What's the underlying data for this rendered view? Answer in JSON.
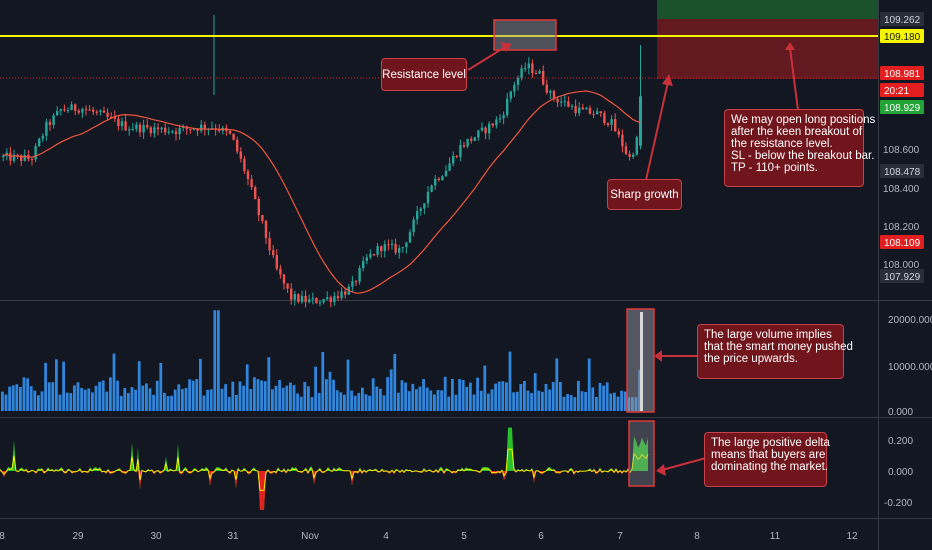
{
  "chart_data": [
    {
      "type": "candlestick",
      "title": "",
      "x_tick_labels": [
        "8",
        "29",
        "30",
        "31",
        "Nov",
        "4",
        "5",
        "6",
        "7",
        "8",
        "11",
        "12"
      ],
      "y_tick_labels": [
        "108.600",
        "108.400",
        "108.200",
        "108.000"
      ],
      "ylim": [
        107.87,
        109.33
      ],
      "resistance_level": 109.18,
      "price_tags": [
        {
          "label": "109.262",
          "color": "#2a2e39",
          "text_color": "#d1d4dc"
        },
        {
          "label": "109.180",
          "color": "#f5f500",
          "text_color": "#131722"
        },
        {
          "label": "108.981",
          "color": "#e21e1e",
          "text_color": "#ffffff"
        },
        {
          "label": "20:21",
          "color": "#e21e1e",
          "text_color": "#ffffff"
        },
        {
          "label": "108.929",
          "color": "#21a336",
          "text_color": "#ffffff"
        },
        {
          "label": "108.478",
          "color": "#2a2e39",
          "text_color": "#d1d4dc"
        },
        {
          "label": "108.109",
          "color": "#e21e1e",
          "text_color": "#ffffff"
        },
        {
          "label": "107.929",
          "color": "#2a2e39",
          "text_color": "#d1d4dc"
        }
      ],
      "series": [
        {
          "type": "line",
          "color": "#f0553c",
          "description_role": "moving average"
        }
      ],
      "annotations": [
        {
          "lines": [
            "Resistance level"
          ]
        },
        {
          "lines": [
            "Sharp growth"
          ]
        },
        {
          "lines": [
            "We may open long positions",
            "after the keen breakout of",
            "the resistance level.",
            "SL - below the breakout bar.",
            "TP - 110+ points."
          ]
        }
      ]
    },
    {
      "type": "bar",
      "y_tick_labels": [
        "20000.000",
        "10000.000",
        "0.000"
      ],
      "ylim": [
        0,
        22000
      ],
      "bar_color": "#2f86dc",
      "annotations": [
        {
          "lines": [
            "The large volume implies",
            "that the smart money pushed",
            "the price upwards."
          ]
        }
      ]
    },
    {
      "type": "area",
      "y_tick_labels": [
        "0.200",
        "0.000",
        "-0.200"
      ],
      "ylim": [
        -0.3,
        0.3
      ],
      "positive_color": "#2bd12b",
      "negative_color": "#e42121",
      "line_color": "#f5f500",
      "annotations": [
        {
          "lines": [
            "The large positive delta",
            "means that buyers are",
            "dominating the market."
          ]
        }
      ]
    }
  ]
}
